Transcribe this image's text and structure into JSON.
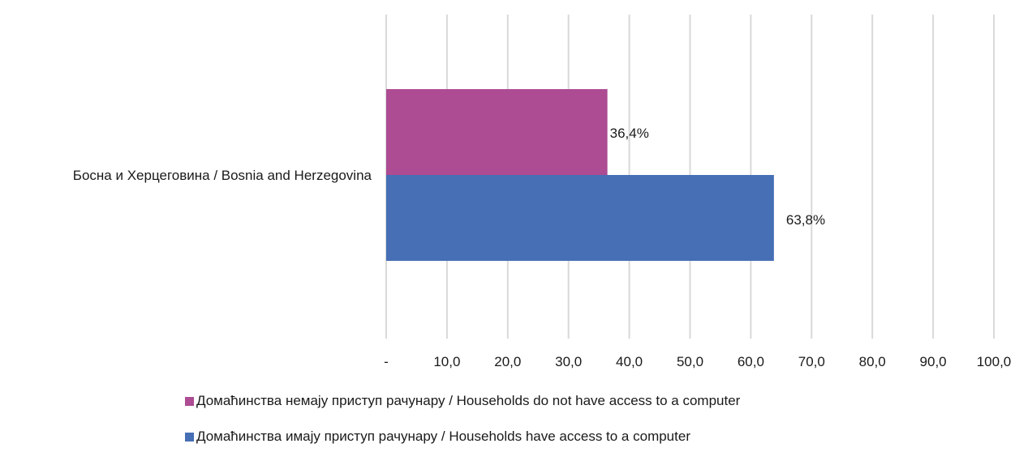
{
  "chart_data": {
    "type": "bar",
    "orientation": "horizontal",
    "categories": [
      "Босна и Херцеговина / Bosnia and Herzegovina"
    ],
    "series": [
      {
        "name": "Домаћинства немају приступ рачунару / Households do not have access to a computer",
        "values": [
          36.4
        ],
        "labels": [
          "36,4%"
        ],
        "color": "#ad4b93"
      },
      {
        "name": "Домаћинства имају приступ рачунару / Households have access to a computer",
        "values": [
          63.8
        ],
        "labels": [
          "63,8%"
        ],
        "color": "#466fb5"
      }
    ],
    "xlim": [
      0,
      100
    ],
    "xticks": [
      0,
      10,
      20,
      30,
      40,
      50,
      60,
      70,
      80,
      90,
      100
    ],
    "xtick_labels": [
      "-",
      "10,0",
      "20,0",
      "30,0",
      "40,0",
      "50,0",
      "60,0",
      "70,0",
      "80,0",
      "90,0",
      "100,0"
    ],
    "grid": true,
    "gridline_color": "#d9d9d9",
    "legend_position": "bottom"
  }
}
